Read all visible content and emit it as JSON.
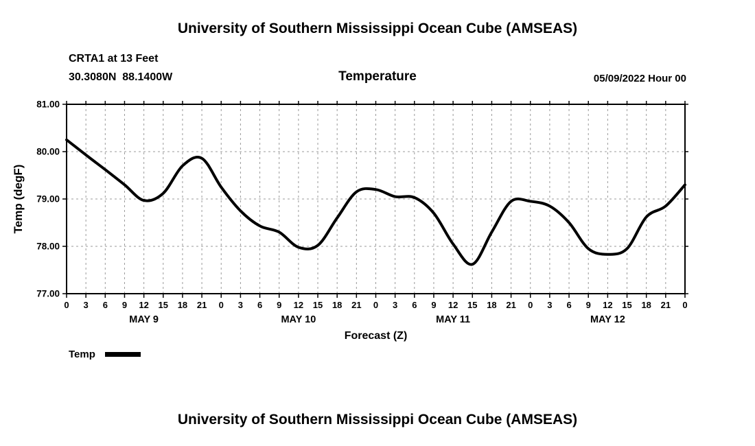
{
  "page": {
    "top_title": "University of Southern Mississippi Ocean Cube (AMSEAS)",
    "bottom_title": "University of Southern Mississippi Ocean Cube (AMSEAS)"
  },
  "header": {
    "station": "CRTA1 at 13 Feet",
    "coords": "30.3080N  88.1400W",
    "plot_title": "Temperature",
    "run_time": "05/09/2022 Hour 00"
  },
  "chart_data": {
    "type": "line",
    "title": "Temperature",
    "xlabel": "Forecast (Z)",
    "ylabel": "Temp (degF)",
    "xlim": [
      0,
      96
    ],
    "ylim": [
      77,
      81
    ],
    "yticks": [
      77,
      78,
      79,
      80,
      81
    ],
    "ytick_labels": [
      "77.00",
      "78.00",
      "79.00",
      "80.00",
      "81.00"
    ],
    "x_hours": [
      0,
      3,
      6,
      9,
      12,
      15,
      18,
      21,
      24,
      27,
      30,
      33,
      36,
      39,
      42,
      45,
      48,
      51,
      54,
      57,
      60,
      63,
      66,
      69,
      72,
      75,
      78,
      81,
      84,
      87,
      90,
      93,
      96
    ],
    "xtick_labels": [
      "0",
      "3",
      "6",
      "9",
      "12",
      "15",
      "18",
      "21",
      "0",
      "3",
      "6",
      "9",
      "12",
      "15",
      "18",
      "21",
      "0",
      "3",
      "6",
      "9",
      "12",
      "15",
      "18",
      "21",
      "0",
      "3",
      "6",
      "9",
      "12",
      "15",
      "18",
      "21",
      "0"
    ],
    "day_labels": [
      {
        "label": "MAY 9",
        "hour": 12
      },
      {
        "label": "MAY 10",
        "hour": 36
      },
      {
        "label": "MAY 11",
        "hour": 60
      },
      {
        "label": "MAY 12",
        "hour": 84
      }
    ],
    "series": [
      {
        "name": "Temp",
        "color": "#000000",
        "x": [
          0,
          3,
          6,
          9,
          12,
          15,
          18,
          21,
          24,
          27,
          30,
          33,
          36,
          39,
          42,
          45,
          48,
          51,
          54,
          57,
          60,
          63,
          66,
          69,
          72,
          75,
          78,
          81,
          84,
          87,
          90,
          93,
          96
        ],
        "values": [
          80.25,
          79.93,
          79.62,
          79.3,
          78.97,
          79.12,
          79.7,
          79.86,
          79.25,
          78.75,
          78.43,
          78.3,
          77.98,
          78.02,
          78.6,
          79.15,
          79.2,
          79.05,
          79.03,
          78.7,
          78.05,
          77.62,
          78.3,
          78.95,
          78.95,
          78.85,
          78.5,
          77.95,
          77.83,
          77.95,
          78.62,
          78.85,
          79.3
        ]
      }
    ],
    "legend": {
      "label": "Temp",
      "position": "bottom-left"
    },
    "grid": "dashed",
    "grid_color": "#999999",
    "axis_color": "#000000",
    "line_width": 4
  }
}
